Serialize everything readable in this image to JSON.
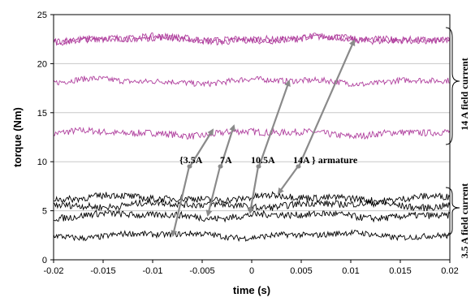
{
  "chart_data": {
    "type": "line",
    "xlabel": "time (s)",
    "ylabel": "torque (Nm)",
    "xlim": [
      -0.02,
      0.02
    ],
    "ylim": [
      0,
      25
    ],
    "x_ticks": [
      "-0.02",
      "-0.015",
      "-0.01",
      "-0.005",
      "0",
      "0.005",
      "0.01",
      "0.015",
      "0.02"
    ],
    "y_ticks": [
      "0",
      "5",
      "10",
      "15",
      "20",
      "25"
    ],
    "grid": "horizontal",
    "colors": {
      "high_field": "#b0409e",
      "low_field": "#000000",
      "arrow": "#8a8a8a"
    },
    "series": [
      {
        "group": "14 A",
        "armature": "3.5A",
        "mean": 12.9,
        "noise": 0.35,
        "values_range": [
          12.3,
          13.6
        ]
      },
      {
        "group": "14 A",
        "armature": "7A",
        "mean": 18.2,
        "noise": 0.3,
        "values_range": [
          17.6,
          18.9
        ]
      },
      {
        "group": "14 A",
        "armature": "10.5A",
        "mean": 22.5,
        "noise": 0.35,
        "values_range": [
          21.8,
          23.2
        ]
      },
      {
        "group": "14 A",
        "armature": "14A",
        "mean": 22.5,
        "noise": 0.35,
        "values_range": [
          21.8,
          23.2
        ]
      },
      {
        "group": "3.5 A",
        "armature": "3.5A",
        "mean": 2.5,
        "noise": 0.3,
        "values_range": [
          1.8,
          3.1
        ]
      },
      {
        "group": "3.5 A",
        "armature": "7A",
        "mean": 4.5,
        "noise": 0.35,
        "values_range": [
          3.8,
          5.2
        ]
      },
      {
        "group": "3.5 A",
        "armature": "10.5A",
        "mean": 5.6,
        "noise": 0.35,
        "values_range": [
          4.9,
          6.3
        ]
      },
      {
        "group": "3.5 A",
        "armature": "14A",
        "mean": 6.3,
        "noise": 0.35,
        "values_range": [
          5.5,
          7.1
        ]
      }
    ],
    "annotations": {
      "armature_label_open": "{3.5A",
      "armature_7": "7A",
      "armature_105": "10.5A",
      "armature_14": "14A } armature",
      "bracket_high": "14 A field current",
      "bracket_low": "3.5 A field current"
    }
  }
}
